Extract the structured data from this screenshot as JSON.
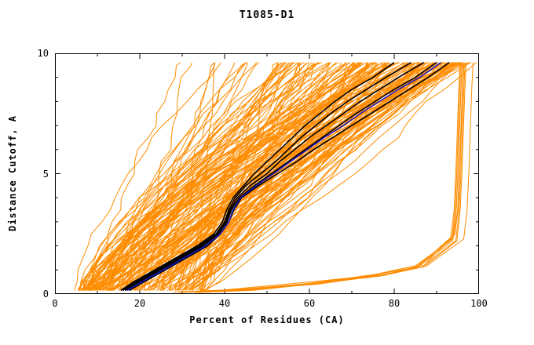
{
  "chart_data": {
    "type": "line",
    "title": "T1085-D1",
    "xlabel": "Percent of Residues (CA)",
    "ylabel": "Distance Cutoff, A",
    "xlim": [
      0,
      100
    ],
    "ylim": [
      0,
      10
    ],
    "x_ticks": [
      0,
      20,
      40,
      60,
      80,
      100
    ],
    "y_ticks": [
      0,
      5,
      10
    ],
    "x_minor_step": 10,
    "y_minor_step": 1,
    "x_tick_labels": [
      "0",
      "20",
      "40",
      "60",
      "80",
      "100"
    ],
    "y_tick_labels": [
      "0",
      "5",
      "10"
    ],
    "grid": false,
    "legend": "none",
    "ensemble": {
      "description": "dense bundle of server-model cumulative distance curves; percent of CA residues (x) under each distance cutoff (y)",
      "color": "#ff8c00",
      "line_width": 1,
      "count": 165,
      "bad_count": 9,
      "seed": 1085,
      "x_start_range": [
        5,
        35
      ],
      "x_end_range": [
        28,
        99
      ],
      "y_max": 9.62
    },
    "highlight_series": [
      {
        "name": "black-1",
        "color": "#000000",
        "width": 1.6,
        "points": [
          [
            16,
            0.15
          ],
          [
            19,
            0.5
          ],
          [
            24,
            1
          ],
          [
            29,
            1.5
          ],
          [
            34,
            2
          ],
          [
            38,
            2.5
          ],
          [
            40,
            3
          ],
          [
            41,
            3.5
          ],
          [
            42.5,
            4
          ],
          [
            45,
            4.5
          ],
          [
            48.5,
            5
          ],
          [
            52,
            5.5
          ],
          [
            55,
            6
          ],
          [
            58,
            6.5
          ],
          [
            61.5,
            7
          ],
          [
            65,
            7.5
          ],
          [
            69,
            8
          ],
          [
            73.5,
            8.5
          ],
          [
            78,
            9
          ],
          [
            84,
            9.62
          ]
        ]
      },
      {
        "name": "black-2",
        "color": "#000000",
        "width": 1.6,
        "points": [
          [
            16.5,
            0.15
          ],
          [
            19.5,
            0.5
          ],
          [
            24.5,
            1
          ],
          [
            29.5,
            1.5
          ],
          [
            34.5,
            2
          ],
          [
            38.3,
            2.5
          ],
          [
            40.3,
            3
          ],
          [
            41.3,
            3.5
          ],
          [
            43,
            4
          ],
          [
            46,
            4.5
          ],
          [
            50,
            5
          ],
          [
            53,
            5.5
          ],
          [
            56.5,
            6
          ],
          [
            60,
            6.5
          ],
          [
            64,
            7
          ],
          [
            68,
            7.5
          ],
          [
            72,
            8
          ],
          [
            76.5,
            8.5
          ],
          [
            81,
            9
          ],
          [
            87,
            9.62
          ]
        ]
      },
      {
        "name": "black-3",
        "color": "#000000",
        "width": 1.6,
        "points": [
          [
            17,
            0.15
          ],
          [
            20,
            0.5
          ],
          [
            25,
            1
          ],
          [
            30,
            1.5
          ],
          [
            35,
            2
          ],
          [
            38.6,
            2.5
          ],
          [
            40.6,
            3
          ],
          [
            41.6,
            3.5
          ],
          [
            43.5,
            4
          ],
          [
            47,
            4.5
          ],
          [
            51,
            5
          ],
          [
            55,
            5.5
          ],
          [
            59,
            6
          ],
          [
            63,
            6.5
          ],
          [
            67,
            7
          ],
          [
            71,
            7.5
          ],
          [
            75.5,
            8
          ],
          [
            80,
            8.5
          ],
          [
            85,
            9
          ],
          [
            90,
            9.62
          ]
        ]
      },
      {
        "name": "black-4",
        "color": "#000000",
        "width": 1.6,
        "points": [
          [
            17.5,
            0.15
          ],
          [
            21,
            0.5
          ],
          [
            26,
            1
          ],
          [
            31,
            1.5
          ],
          [
            36,
            2
          ],
          [
            39,
            2.5
          ],
          [
            41,
            3
          ],
          [
            42.2,
            3.5
          ],
          [
            44,
            4
          ],
          [
            48,
            4.5
          ],
          [
            52.5,
            5
          ],
          [
            57,
            5.5
          ],
          [
            61,
            6
          ],
          [
            65.5,
            6.5
          ],
          [
            70,
            7
          ],
          [
            74.5,
            7.5
          ],
          [
            79,
            8
          ],
          [
            83.5,
            8.5
          ],
          [
            88,
            9
          ],
          [
            93,
            9.62
          ]
        ]
      },
      {
        "name": "black-5",
        "color": "#000000",
        "width": 1.6,
        "points": [
          [
            15.5,
            0.15
          ],
          [
            18.5,
            0.5
          ],
          [
            23.5,
            1
          ],
          [
            28.5,
            1.5
          ],
          [
            33.5,
            2
          ],
          [
            37.5,
            2.5
          ],
          [
            39.5,
            3
          ],
          [
            40.5,
            3.5
          ],
          [
            42,
            4
          ],
          [
            44.5,
            4.5
          ],
          [
            47,
            5
          ],
          [
            50,
            5.5
          ],
          [
            53,
            6
          ],
          [
            56,
            6.5
          ],
          [
            59,
            7
          ],
          [
            62.5,
            7.5
          ],
          [
            66,
            8
          ],
          [
            70,
            8.5
          ],
          [
            75,
            9
          ],
          [
            80,
            9.62
          ]
        ]
      },
      {
        "name": "blue-highlight",
        "color": "#1515c8",
        "width": 1.5,
        "points": [
          [
            17,
            0.15
          ],
          [
            20.5,
            0.5
          ],
          [
            25.5,
            1
          ],
          [
            30.5,
            1.5
          ],
          [
            35.5,
            2
          ],
          [
            39,
            2.5
          ],
          [
            41,
            3
          ],
          [
            42,
            3.5
          ],
          [
            43.8,
            4
          ],
          [
            47.5,
            4.5
          ],
          [
            51.5,
            5
          ],
          [
            55.5,
            5.5
          ],
          [
            59.5,
            6
          ],
          [
            63.5,
            6.5
          ],
          [
            68,
            7
          ],
          [
            72,
            7.5
          ],
          [
            76.5,
            8
          ],
          [
            81,
            8.5
          ],
          [
            86,
            9
          ],
          [
            91,
            9.62
          ]
        ]
      }
    ],
    "axis_color": "#000000"
  }
}
